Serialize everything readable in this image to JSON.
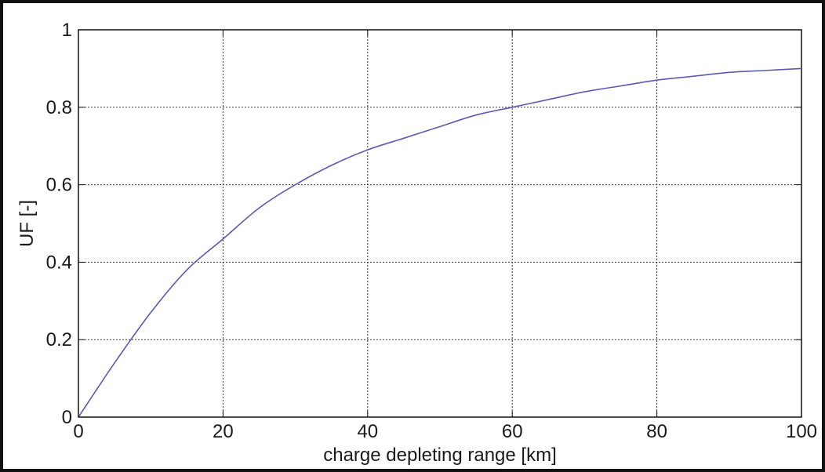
{
  "chart_data": {
    "type": "line",
    "title": "",
    "xlabel": "charge depleting range [km]",
    "ylabel": "UF [-]",
    "xlim": [
      0,
      100
    ],
    "ylim": [
      0,
      1
    ],
    "x_ticks": [
      0,
      20,
      40,
      60,
      80,
      100
    ],
    "y_ticks": [
      0,
      0.2,
      0.4,
      0.6,
      0.8,
      1
    ],
    "x_tick_labels": [
      "0",
      "20",
      "40",
      "60",
      "80",
      "100"
    ],
    "y_tick_labels": [
      "0",
      "0.2",
      "0.4",
      "0.6",
      "0.8",
      "1"
    ],
    "grid": true,
    "legend": "none",
    "series": [
      {
        "color": "#5a5ab4",
        "x": [
          0,
          5,
          10,
          15,
          20,
          25,
          30,
          35,
          40,
          45,
          50,
          55,
          60,
          65,
          70,
          75,
          80,
          85,
          90,
          95,
          100
        ],
        "y": [
          0,
          0.14,
          0.27,
          0.38,
          0.46,
          0.54,
          0.6,
          0.65,
          0.69,
          0.72,
          0.75,
          0.78,
          0.8,
          0.82,
          0.84,
          0.855,
          0.87,
          0.88,
          0.89,
          0.895,
          0.9
        ]
      }
    ]
  }
}
